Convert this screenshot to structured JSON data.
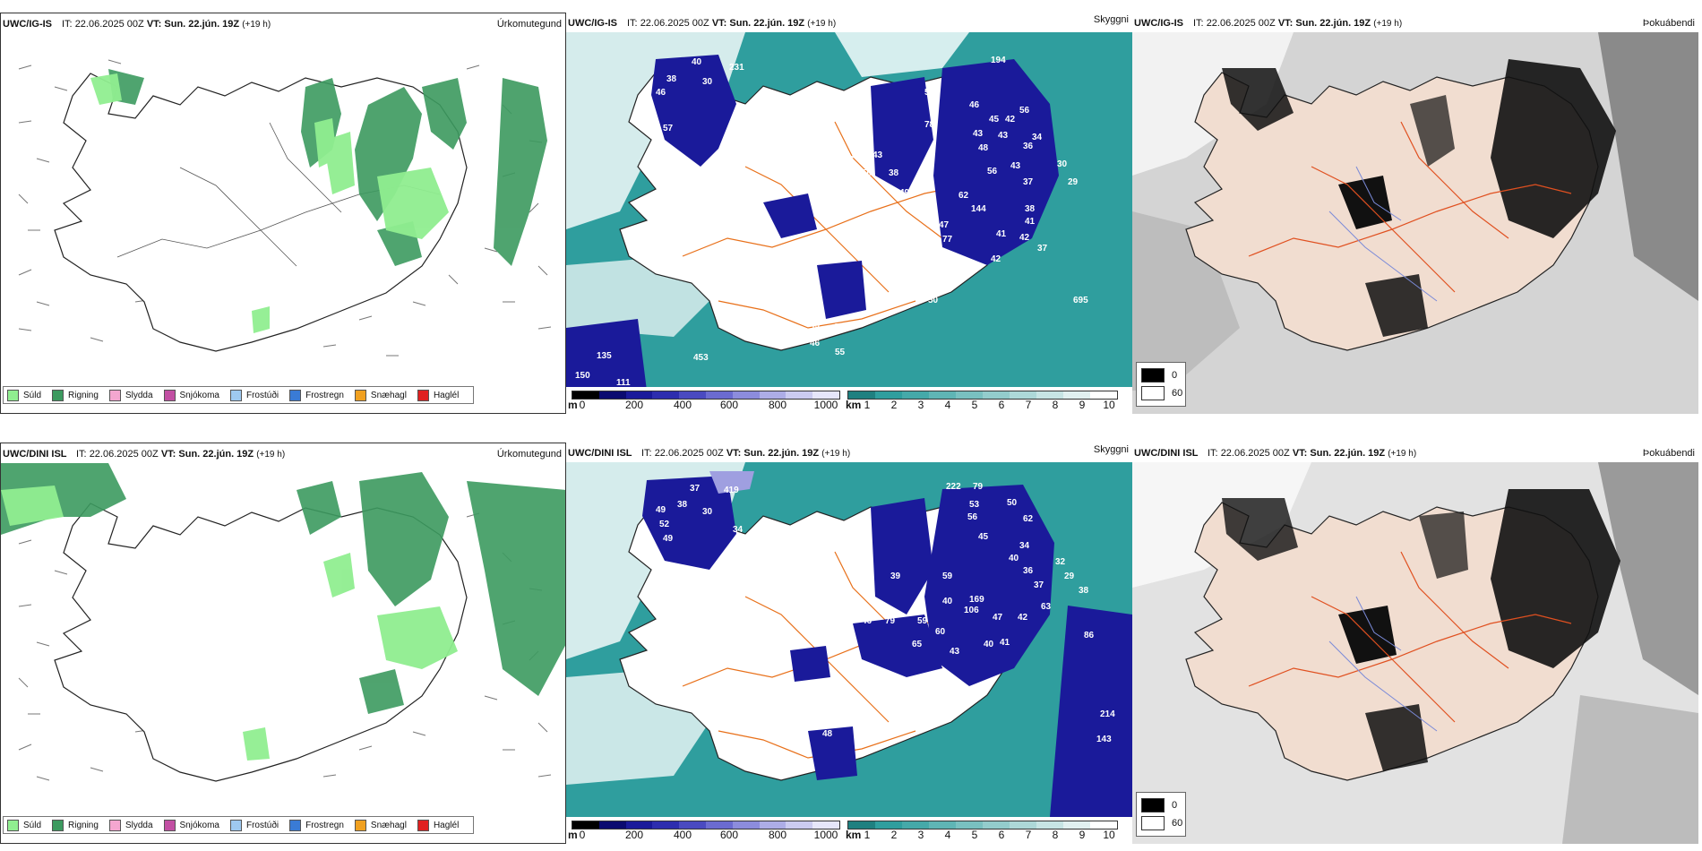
{
  "rows": [
    {
      "precip": {
        "model": "UWC/IG-IS",
        "it_label": "IT:",
        "it_value": "22.06.2025 00Z",
        "vt_label": "VT:",
        "vt_value": "Sun. 22.jún. 19Z",
        "lead": "(+19 h)",
        "variable": "Úrkomutegund",
        "legend": [
          "Súld",
          "Rigning",
          "Slydda",
          "Snjókoma",
          "Frostúði",
          "Frostregn",
          "Snæhagl",
          "Haglél"
        ]
      },
      "cloud": {
        "model": "UWC/IG-IS",
        "it_label": "IT:",
        "it_value": "22.06.2025 00Z",
        "vt_label": "VT:",
        "vt_value": "Sun. 22.jún. 19Z",
        "lead": "(+19 h)",
        "variable": "Skyggni",
        "ceiling_unit": "m",
        "ceiling_ticks": [
          "0",
          "200",
          "400",
          "600",
          "800",
          "1000"
        ],
        "vis_unit": "km",
        "vis_ticks": [
          "1",
          "2",
          "3",
          "4",
          "5",
          "6",
          "7",
          "8",
          "9",
          "10"
        ],
        "labels": [
          "40",
          "231",
          "194",
          "38",
          "30",
          "46",
          "57",
          "34",
          "54",
          "78",
          "46",
          "56",
          "45",
          "42",
          "43",
          "43",
          "48",
          "36",
          "58",
          "43",
          "38",
          "50",
          "56",
          "43",
          "30",
          "29",
          "110",
          "70",
          "73",
          "49",
          "62",
          "37",
          "91",
          "144",
          "38",
          "41",
          "47",
          "11",
          "45",
          "77",
          "41",
          "42",
          "37",
          "39",
          "71",
          "53",
          "42",
          "43",
          "56",
          "71",
          "50",
          "695",
          "49",
          "78",
          "46",
          "55",
          "135",
          "453",
          "150",
          "111",
          "34"
        ]
      },
      "fog": {
        "model": "UWC/IG-IS",
        "it_label": "IT:",
        "it_value": "22.06.2025 00Z",
        "vt_label": "VT:",
        "vt_value": "Sun. 22.jún. 19Z",
        "lead": "(+19 h)",
        "variable": "Þokuábendi",
        "legend_min": "0",
        "legend_max": "60"
      }
    },
    {
      "precip": {
        "model": "UWC/DINI ISL",
        "it_label": "IT:",
        "it_value": "22.06.2025 00Z",
        "vt_label": "VT:",
        "vt_value": "Sun. 22.jún. 19Z",
        "lead": "(+19 h)",
        "variable": "Úrkomutegund",
        "legend": [
          "Súld",
          "Rigning",
          "Slydda",
          "Snjókoma",
          "Frostúði",
          "Frostregn",
          "Snæhagl",
          "Haglél"
        ]
      },
      "cloud": {
        "model": "UWC/DINI ISL",
        "it_label": "IT:",
        "it_value": "22.06.2025 00Z",
        "vt_label": "VT:",
        "vt_value": "Sun. 22.jún. 19Z",
        "lead": "(+19 h)",
        "variable": "Skyggni",
        "ceiling_unit": "m",
        "ceiling_ticks": [
          "0",
          "200",
          "400",
          "600",
          "800",
          "1000"
        ],
        "vis_unit": "km",
        "vis_ticks": [
          "1",
          "2",
          "3",
          "4",
          "5",
          "6",
          "7",
          "8",
          "9",
          "10"
        ],
        "labels": [
          "37",
          "419",
          "222",
          "79",
          "49",
          "38",
          "30",
          "50",
          "53",
          "62",
          "56",
          "52",
          "49",
          "34",
          "45",
          "38",
          "40",
          "34",
          "36",
          "32",
          "29",
          "38",
          "39",
          "59",
          "40",
          "169",
          "106",
          "47",
          "42",
          "63",
          "46",
          "79",
          "59",
          "60",
          "65",
          "43",
          "40",
          "41",
          "43",
          "86",
          "71",
          "54",
          "61",
          "39",
          "48",
          "214",
          "143",
          "38",
          "37"
        ]
      },
      "fog": {
        "model": "UWC/DINI ISL",
        "it_label": "IT:",
        "it_value": "22.06.2025 00Z",
        "vt_label": "VT:",
        "vt_value": "Sun. 22.jún. 19Z",
        "lead": "(+19 h)",
        "variable": "Þokuábendi",
        "legend_min": "0",
        "legend_max": "60"
      }
    }
  ],
  "colors": {
    "drizzle": "#90ee90",
    "rain": "#3c9a5f",
    "sleet": "#f4a6d0",
    "snow": "#c24fa3",
    "freezing_drizzle": "#9ec9f0",
    "freezing_rain": "#3a7bd5",
    "snow_pellets": "#f0a020",
    "hail": "#e02020",
    "cloud_base": "#1a1a9a",
    "visibility": "#2f9e9e",
    "roads": "#e8701a",
    "land": "#f1ddd0"
  }
}
